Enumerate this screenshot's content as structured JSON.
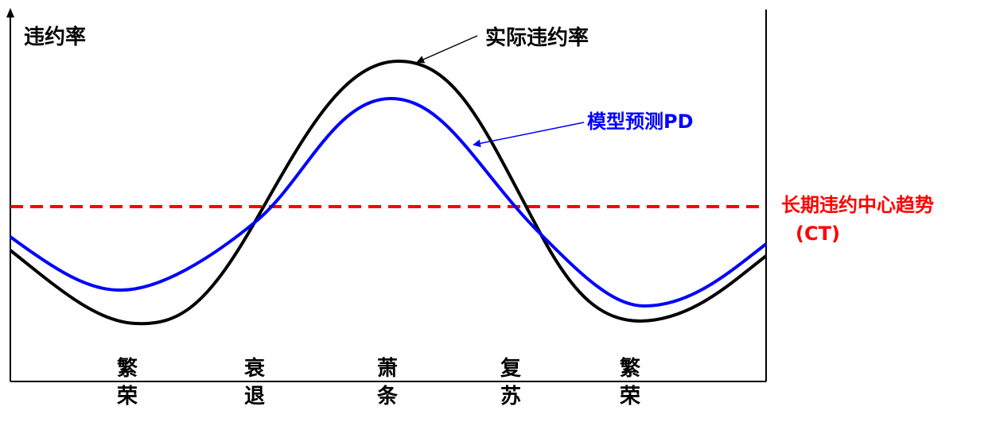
{
  "diagram": {
    "y_axis_label": "违约率",
    "actual_label": "实际违约率",
    "model_label": "模型预测PD",
    "ct_label_line1": "长期违约中心趋势",
    "ct_label_line2": "(CT)",
    "phases": [
      {
        "line1": "繁",
        "line2": "荣"
      },
      {
        "line1": "衰",
        "line2": "退"
      },
      {
        "line1": "萧",
        "line2": "条"
      },
      {
        "line1": "复",
        "line2": "苏"
      },
      {
        "line1": "繁",
        "line2": "荣"
      }
    ],
    "colors": {
      "axis": "#000000",
      "actual": "#000000",
      "model": "#0000ff",
      "ct": "#ff0000",
      "ct_label": "#ff0000",
      "model_label": "#0000ff",
      "text": "#000000"
    }
  }
}
